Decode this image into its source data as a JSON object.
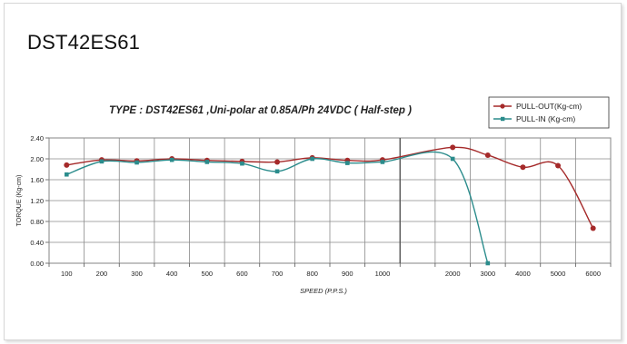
{
  "page_title": "DST42ES61",
  "chart_data": {
    "type": "line",
    "title": "TYPE : DST42ES61 ,Uni-polar at 0.85A/Ph 24VDC  ( Half-step )",
    "xlabel": "SPEED (P.P.S.)",
    "ylabel": "TORQUE (Kg-cm)",
    "categories": [
      "100",
      "200",
      "300",
      "400",
      "500",
      "600",
      "700",
      "800",
      "900",
      "1000",
      "",
      "2000",
      "3000",
      "4000",
      "5000",
      "6000"
    ],
    "ylim": [
      0,
      2.4
    ],
    "yticks": [
      "0.00",
      "0.40",
      "0.80",
      "1.20",
      "1.60",
      "2.00",
      "2.40"
    ],
    "grid": true,
    "legend_position": "top-right",
    "series": [
      {
        "name": "PULL-OUT(Kg-cm)",
        "color": "#a52a2a",
        "marker": "circle",
        "values": [
          1.88,
          1.98,
          1.96,
          2.0,
          1.97,
          1.95,
          1.94,
          2.02,
          1.97,
          1.98,
          null,
          2.22,
          2.07,
          1.84,
          1.87,
          0.67
        ]
      },
      {
        "name": "PULL-IN  (Kg-cm)",
        "color": "#2b8c8c",
        "marker": "square",
        "values": [
          1.7,
          1.95,
          1.93,
          1.98,
          1.94,
          1.91,
          1.76,
          2.0,
          1.92,
          1.94,
          null,
          2.0,
          0.0,
          null,
          null,
          null
        ]
      }
    ]
  }
}
